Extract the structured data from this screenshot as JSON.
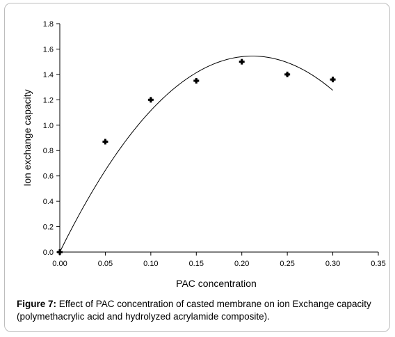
{
  "chart_data": {
    "type": "scatter",
    "xlabel": "PAC concentration",
    "ylabel": "Ion exchange capacity",
    "xlim": [
      0,
      0.35
    ],
    "ylim": [
      0,
      1.8
    ],
    "x_ticks": [
      "0.00",
      "0.05",
      "0.10",
      "0.15",
      "0.20",
      "0.25",
      "0.30",
      "0.35"
    ],
    "y_ticks": [
      "0.0",
      "0.2",
      "0.4",
      "0.6",
      "0.8",
      "1.0",
      "1.2",
      "1.4",
      "1.6",
      "1.8"
    ],
    "series": [
      {
        "x": [
          0.0,
          0.05,
          0.1,
          0.15,
          0.2,
          0.25,
          0.3
        ],
        "y": [
          0.0,
          0.87,
          1.2,
          1.35,
          1.5,
          1.4,
          1.36
        ]
      }
    ],
    "trendline": {
      "type": "polynomial-2",
      "coefficients": [
        0.0,
        14.6,
        -34.5
      ],
      "x_range": [
        0,
        0.3
      ]
    },
    "grid": false,
    "legend": "none"
  },
  "caption": {
    "label": "Figure 7:",
    "text": " Effect of PAC concentration of casted membrane on ion Exchange capacity (polymethacrylic acid and hydrolyzed acrylamide composite)."
  }
}
